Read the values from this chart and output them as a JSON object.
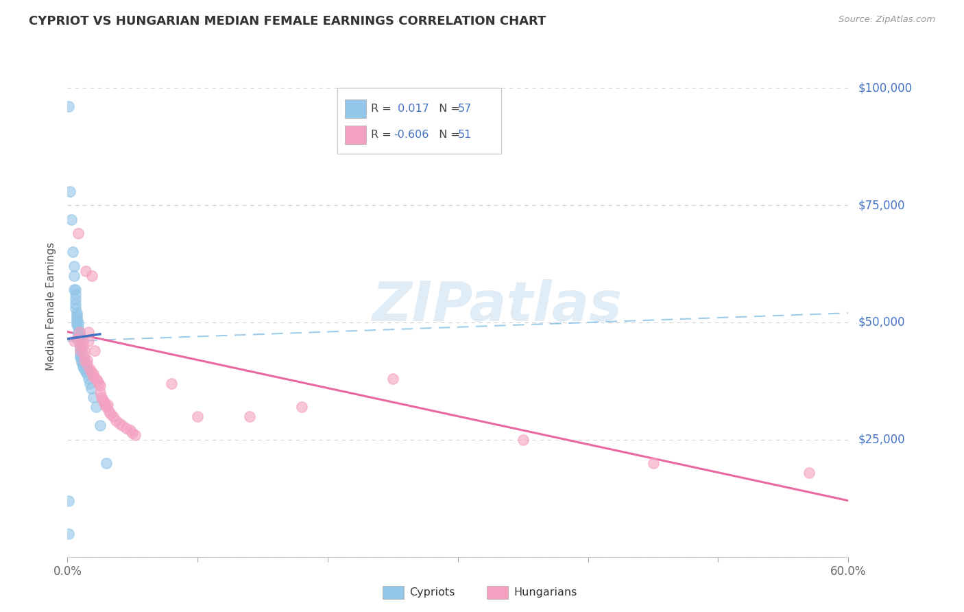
{
  "title": "CYPRIOT VS HUNGARIAN MEDIAN FEMALE EARNINGS CORRELATION CHART",
  "source": "Source: ZipAtlas.com",
  "ylabel": "Median Female Earnings",
  "xlim": [
    0.0,
    0.6
  ],
  "ylim": [
    0,
    107000
  ],
  "yticks": [
    0,
    25000,
    50000,
    75000,
    100000
  ],
  "ytick_labels": [
    "",
    "$25,000",
    "$50,000",
    "$75,000",
    "$100,000"
  ],
  "xtick_labels": [
    "0.0%",
    "",
    "",
    "",
    "",
    "",
    "60.0%"
  ],
  "cypriot_R": 0.017,
  "cypriot_N": 57,
  "hungarian_R": -0.606,
  "hungarian_N": 51,
  "blue_color": "#93c6e8",
  "blue_line_color": "#4472c4",
  "blue_dash_color": "#93c6e8",
  "pink_color": "#f4a0c0",
  "pink_line_color": "#e8609a",
  "title_color": "#333333",
  "axis_color": "#4472c4",
  "grid_color": "#d0d0d0",
  "watermark_color": "#c8ddf0",
  "cypriot_x": [
    0.001,
    0.002,
    0.003,
    0.004,
    0.005,
    0.005,
    0.005,
    0.006,
    0.006,
    0.006,
    0.006,
    0.006,
    0.007,
    0.007,
    0.007,
    0.007,
    0.007,
    0.007,
    0.008,
    0.008,
    0.008,
    0.008,
    0.009,
    0.009,
    0.009,
    0.009,
    0.009,
    0.01,
    0.01,
    0.01,
    0.01,
    0.01,
    0.01,
    0.01,
    0.011,
    0.011,
    0.011,
    0.011,
    0.012,
    0.012,
    0.012,
    0.013,
    0.013,
    0.014,
    0.014,
    0.014,
    0.015,
    0.015,
    0.016,
    0.017,
    0.018,
    0.02,
    0.022,
    0.025,
    0.03,
    0.001,
    0.001
  ],
  "cypriot_y": [
    96000,
    78000,
    72000,
    65000,
    62000,
    60000,
    57000,
    57000,
    56000,
    55000,
    54000,
    53000,
    52000,
    51500,
    51000,
    50500,
    50000,
    49500,
    50000,
    49000,
    48000,
    47500,
    48000,
    47000,
    46500,
    46000,
    45500,
    46000,
    45000,
    44500,
    44000,
    43500,
    43000,
    42500,
    44000,
    43000,
    42000,
    41500,
    42000,
    41000,
    40500,
    41000,
    40000,
    40500,
    40000,
    39500,
    40000,
    39000,
    38000,
    37000,
    36000,
    34000,
    32000,
    28000,
    20000,
    12000,
    5000
  ],
  "hungarian_x": [
    0.005,
    0.007,
    0.008,
    0.009,
    0.01,
    0.01,
    0.012,
    0.012,
    0.013,
    0.013,
    0.013,
    0.014,
    0.015,
    0.015,
    0.016,
    0.016,
    0.017,
    0.018,
    0.019,
    0.02,
    0.02,
    0.021,
    0.022,
    0.023,
    0.024,
    0.025,
    0.025,
    0.026,
    0.027,
    0.028,
    0.029,
    0.03,
    0.031,
    0.032,
    0.033,
    0.035,
    0.037,
    0.04,
    0.042,
    0.045,
    0.048,
    0.05,
    0.052,
    0.08,
    0.1,
    0.14,
    0.18,
    0.25,
    0.35,
    0.45,
    0.57
  ],
  "hungarian_y": [
    46000,
    46500,
    69000,
    48000,
    45000,
    44000,
    46000,
    45000,
    44000,
    43000,
    42000,
    61000,
    42000,
    41000,
    48000,
    46000,
    40000,
    39500,
    60000,
    39000,
    38500,
    44000,
    38000,
    37500,
    37000,
    36500,
    35000,
    34000,
    33500,
    33000,
    32500,
    32000,
    32500,
    31000,
    30500,
    30000,
    29000,
    28500,
    28000,
    27500,
    27000,
    26500,
    26000,
    37000,
    30000,
    30000,
    32000,
    38000,
    25000,
    20000,
    18000
  ],
  "cypriot_trendline_x": [
    0.0,
    0.6
  ],
  "cypriot_trendline_y": [
    46000,
    52000
  ],
  "hungarian_trendline_x": [
    0.0,
    0.6
  ],
  "hungarian_trendline_y": [
    48000,
    12000
  ]
}
